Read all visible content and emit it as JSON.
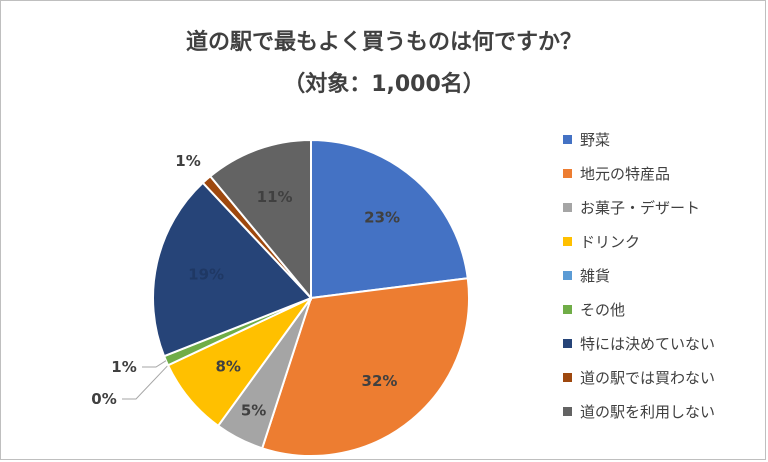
{
  "chart_data": {
    "type": "pie",
    "title": "道の駅で最もよく買うものは何ですか？",
    "subtitle": "（対象：1,000名）",
    "categories": [
      "野菜",
      "地元の特産品",
      "お菓子・デザート",
      "ドリンク",
      "雑貨",
      "その他",
      "特には決めていない",
      "道の駅では買わない",
      "道の駅を利用しない"
    ],
    "values": [
      23,
      32,
      5,
      8,
      0,
      1,
      19,
      1,
      11
    ],
    "labels": [
      "23%",
      "32%",
      "5%",
      "8%",
      "0%",
      "1%",
      "19%",
      "1%",
      "11%"
    ],
    "colors": [
      "#4472c4",
      "#ed7d31",
      "#a5a5a5",
      "#ffc000",
      "#5b9bd5",
      "#70ad47",
      "#264478",
      "#9e480e",
      "#636363"
    ],
    "legend_position": "right"
  }
}
